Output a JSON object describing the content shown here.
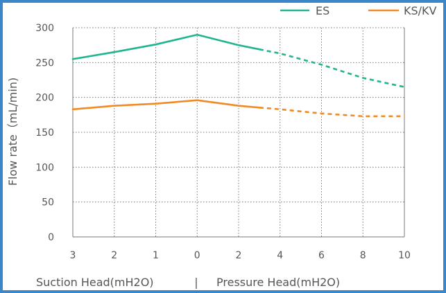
{
  "chart_data": {
    "type": "line",
    "x": [
      "3",
      "2",
      "1",
      "0",
      "2",
      "4",
      "6",
      "8",
      "10"
    ],
    "ylim": [
      0,
      300
    ],
    "yticks": [
      0,
      50,
      100,
      150,
      200,
      250,
      300
    ],
    "ylabel": "Flow rate（mL/min)",
    "xlabel_left": "Suction Head(mH2O)",
    "xlabel_sep": "|",
    "xlabel_right": "Pressure Head(mH2O)",
    "grid": true,
    "legend_position": "top-right",
    "solid_until_x": 4.5,
    "series": [
      {
        "name": "ES",
        "color": "#1fb58f",
        "values": [
          255,
          265,
          276,
          290,
          275,
          263,
          247,
          228,
          215
        ]
      },
      {
        "name": "KS/KV",
        "color": "#f08a24",
        "values": [
          183,
          188,
          191,
          196,
          188,
          183,
          177,
          173,
          173
        ]
      }
    ]
  }
}
